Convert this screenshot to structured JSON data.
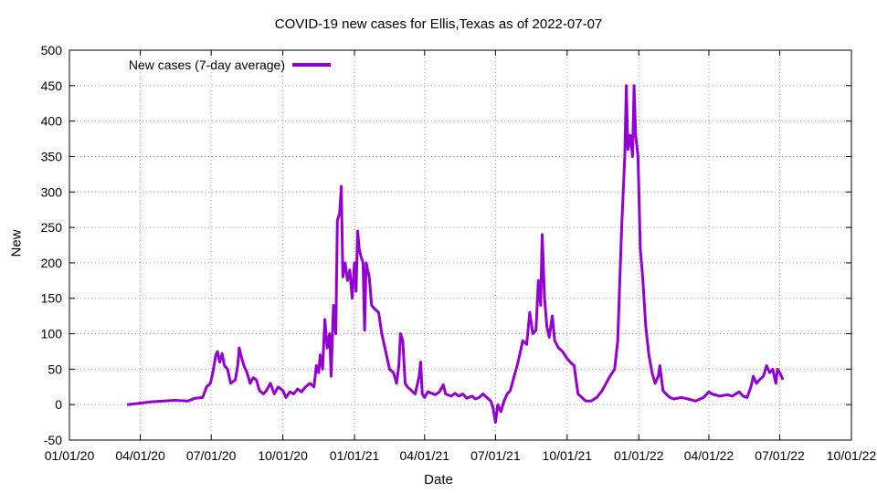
{
  "chart_data": {
    "type": "line",
    "title": "COVID-19 new cases for Ellis,Texas as of 2022-07-07",
    "xlabel": "Date",
    "ylabel": "New",
    "ylim": [
      -50,
      500
    ],
    "yticks": [
      -50,
      0,
      50,
      100,
      150,
      200,
      250,
      300,
      350,
      400,
      450,
      500
    ],
    "xlim": [
      "2020-01-01",
      "2022-10-01"
    ],
    "xticks": [
      {
        "date": "2020-01-01",
        "label": "01/01/20"
      },
      {
        "date": "2020-04-01",
        "label": "04/01/20"
      },
      {
        "date": "2020-07-01",
        "label": "07/01/20"
      },
      {
        "date": "2020-10-01",
        "label": "10/01/20"
      },
      {
        "date": "2021-01-01",
        "label": "01/01/21"
      },
      {
        "date": "2021-04-01",
        "label": "04/01/21"
      },
      {
        "date": "2021-07-01",
        "label": "07/01/21"
      },
      {
        "date": "2021-10-01",
        "label": "10/01/21"
      },
      {
        "date": "2022-01-01",
        "label": "01/01/22"
      },
      {
        "date": "2022-04-01",
        "label": "04/01/22"
      },
      {
        "date": "2022-07-01",
        "label": "07/01/22"
      },
      {
        "date": "2022-10-01",
        "label": "10/01/22"
      }
    ],
    "grid": true,
    "legend_position": "top-left",
    "series": [
      {
        "name": "New cases (7-day average)",
        "color": "#9400d3",
        "points": [
          [
            "2020-03-15",
            0
          ],
          [
            "2020-04-01",
            2
          ],
          [
            "2020-04-15",
            4
          ],
          [
            "2020-05-01",
            5
          ],
          [
            "2020-05-15",
            6
          ],
          [
            "2020-06-01",
            5
          ],
          [
            "2020-06-10",
            9
          ],
          [
            "2020-06-20",
            10
          ],
          [
            "2020-06-25",
            25
          ],
          [
            "2020-06-30",
            30
          ],
          [
            "2020-07-03",
            45
          ],
          [
            "2020-07-07",
            70
          ],
          [
            "2020-07-09",
            75
          ],
          [
            "2020-07-12",
            60
          ],
          [
            "2020-07-15",
            72
          ],
          [
            "2020-07-18",
            55
          ],
          [
            "2020-07-22",
            50
          ],
          [
            "2020-07-26",
            30
          ],
          [
            "2020-08-01",
            35
          ],
          [
            "2020-08-04",
            55
          ],
          [
            "2020-08-06",
            80
          ],
          [
            "2020-08-08",
            70
          ],
          [
            "2020-08-12",
            55
          ],
          [
            "2020-08-16",
            45
          ],
          [
            "2020-08-20",
            30
          ],
          [
            "2020-08-24",
            38
          ],
          [
            "2020-08-28",
            35
          ],
          [
            "2020-09-01",
            20
          ],
          [
            "2020-09-06",
            15
          ],
          [
            "2020-09-10",
            20
          ],
          [
            "2020-09-15",
            30
          ],
          [
            "2020-09-20",
            15
          ],
          [
            "2020-09-25",
            25
          ],
          [
            "2020-10-01",
            20
          ],
          [
            "2020-10-05",
            10
          ],
          [
            "2020-10-10",
            18
          ],
          [
            "2020-10-15",
            15
          ],
          [
            "2020-10-20",
            22
          ],
          [
            "2020-10-25",
            18
          ],
          [
            "2020-10-30",
            25
          ],
          [
            "2020-11-05",
            30
          ],
          [
            "2020-11-10",
            25
          ],
          [
            "2020-11-13",
            55
          ],
          [
            "2020-11-16",
            45
          ],
          [
            "2020-11-18",
            70
          ],
          [
            "2020-11-21",
            50
          ],
          [
            "2020-11-24",
            120
          ],
          [
            "2020-11-27",
            80
          ],
          [
            "2020-11-30",
            100
          ],
          [
            "2020-12-02",
            40
          ],
          [
            "2020-12-05",
            140
          ],
          [
            "2020-12-08",
            100
          ],
          [
            "2020-12-10",
            260
          ],
          [
            "2020-12-13",
            270
          ],
          [
            "2020-12-15",
            308
          ],
          [
            "2020-12-17",
            180
          ],
          [
            "2020-12-20",
            200
          ],
          [
            "2020-12-23",
            175
          ],
          [
            "2020-12-26",
            190
          ],
          [
            "2020-12-29",
            150
          ],
          [
            "2021-01-01",
            200
          ],
          [
            "2021-01-03",
            160
          ],
          [
            "2021-01-05",
            245
          ],
          [
            "2021-01-07",
            220
          ],
          [
            "2021-01-09",
            210
          ],
          [
            "2021-01-12",
            200
          ],
          [
            "2021-01-14",
            105
          ],
          [
            "2021-01-16",
            200
          ],
          [
            "2021-01-20",
            180
          ],
          [
            "2021-01-23",
            140
          ],
          [
            "2021-01-27",
            135
          ],
          [
            "2021-02-01",
            130
          ],
          [
            "2021-02-05",
            100
          ],
          [
            "2021-02-10",
            75
          ],
          [
            "2021-02-15",
            50
          ],
          [
            "2021-02-20",
            45
          ],
          [
            "2021-02-24",
            30
          ],
          [
            "2021-02-27",
            55
          ],
          [
            "2021-03-01",
            100
          ],
          [
            "2021-03-04",
            90
          ],
          [
            "2021-03-07",
            30
          ],
          [
            "2021-03-10",
            25
          ],
          [
            "2021-03-15",
            20
          ],
          [
            "2021-03-20",
            15
          ],
          [
            "2021-03-25",
            40
          ],
          [
            "2021-03-27",
            60
          ],
          [
            "2021-03-29",
            15
          ],
          [
            "2021-04-01",
            10
          ],
          [
            "2021-04-05",
            18
          ],
          [
            "2021-04-10",
            16
          ],
          [
            "2021-04-15",
            14
          ],
          [
            "2021-04-20",
            18
          ],
          [
            "2021-04-25",
            28
          ],
          [
            "2021-04-28",
            15
          ],
          [
            "2021-05-05",
            12
          ],
          [
            "2021-05-10",
            16
          ],
          [
            "2021-05-15",
            12
          ],
          [
            "2021-05-20",
            15
          ],
          [
            "2021-05-25",
            9
          ],
          [
            "2021-06-01",
            12
          ],
          [
            "2021-06-05",
            8
          ],
          [
            "2021-06-10",
            10
          ],
          [
            "2021-06-15",
            15
          ],
          [
            "2021-06-20",
            10
          ],
          [
            "2021-06-25",
            5
          ],
          [
            "2021-06-28",
            -5
          ],
          [
            "2021-07-01",
            -25
          ],
          [
            "2021-07-04",
            0
          ],
          [
            "2021-07-08",
            -10
          ],
          [
            "2021-07-12",
            5
          ],
          [
            "2021-07-16",
            15
          ],
          [
            "2021-07-20",
            20
          ],
          [
            "2021-07-25",
            40
          ],
          [
            "2021-07-30",
            60
          ],
          [
            "2021-08-05",
            90
          ],
          [
            "2021-08-10",
            85
          ],
          [
            "2021-08-14",
            130
          ],
          [
            "2021-08-18",
            100
          ],
          [
            "2021-08-22",
            105
          ],
          [
            "2021-08-25",
            175
          ],
          [
            "2021-08-28",
            140
          ],
          [
            "2021-08-30",
            240
          ],
          [
            "2021-09-02",
            150
          ],
          [
            "2021-09-05",
            110
          ],
          [
            "2021-09-08",
            95
          ],
          [
            "2021-09-12",
            125
          ],
          [
            "2021-09-15",
            90
          ],
          [
            "2021-09-20",
            80
          ],
          [
            "2021-09-25",
            75
          ],
          [
            "2021-10-01",
            65
          ],
          [
            "2021-10-05",
            60
          ],
          [
            "2021-10-10",
            55
          ],
          [
            "2021-10-15",
            15
          ],
          [
            "2021-10-20",
            10
          ],
          [
            "2021-10-25",
            5
          ],
          [
            "2021-11-01",
            5
          ],
          [
            "2021-11-08",
            10
          ],
          [
            "2021-11-15",
            20
          ],
          [
            "2021-11-20",
            30
          ],
          [
            "2021-11-25",
            40
          ],
          [
            "2021-12-01",
            50
          ],
          [
            "2021-12-05",
            90
          ],
          [
            "2021-12-10",
            250
          ],
          [
            "2021-12-14",
            350
          ],
          [
            "2021-12-16",
            450
          ],
          [
            "2021-12-18",
            360
          ],
          [
            "2021-12-21",
            380
          ],
          [
            "2021-12-24",
            350
          ],
          [
            "2021-12-26",
            450
          ],
          [
            "2021-12-28",
            380
          ],
          [
            "2021-12-31",
            350
          ],
          [
            "2022-01-03",
            220
          ],
          [
            "2022-01-06",
            180
          ],
          [
            "2022-01-10",
            110
          ],
          [
            "2022-01-14",
            70
          ],
          [
            "2022-01-18",
            45
          ],
          [
            "2022-01-22",
            30
          ],
          [
            "2022-01-26",
            40
          ],
          [
            "2022-01-28",
            55
          ],
          [
            "2022-02-01",
            20
          ],
          [
            "2022-02-05",
            15
          ],
          [
            "2022-02-10",
            10
          ],
          [
            "2022-02-15",
            8
          ],
          [
            "2022-02-25",
            10
          ],
          [
            "2022-03-05",
            8
          ],
          [
            "2022-03-15",
            5
          ],
          [
            "2022-03-25",
            10
          ],
          [
            "2022-04-01",
            18
          ],
          [
            "2022-04-05",
            15
          ],
          [
            "2022-04-15",
            12
          ],
          [
            "2022-04-25",
            14
          ],
          [
            "2022-05-01",
            12
          ],
          [
            "2022-05-10",
            18
          ],
          [
            "2022-05-15",
            12
          ],
          [
            "2022-05-20",
            10
          ],
          [
            "2022-05-25",
            25
          ],
          [
            "2022-05-28",
            40
          ],
          [
            "2022-06-01",
            30
          ],
          [
            "2022-06-05",
            35
          ],
          [
            "2022-06-10",
            40
          ],
          [
            "2022-06-14",
            55
          ],
          [
            "2022-06-18",
            45
          ],
          [
            "2022-06-22",
            50
          ],
          [
            "2022-06-26",
            30
          ],
          [
            "2022-06-28",
            50
          ],
          [
            "2022-07-01",
            45
          ],
          [
            "2022-07-05",
            35
          ]
        ]
      }
    ]
  }
}
